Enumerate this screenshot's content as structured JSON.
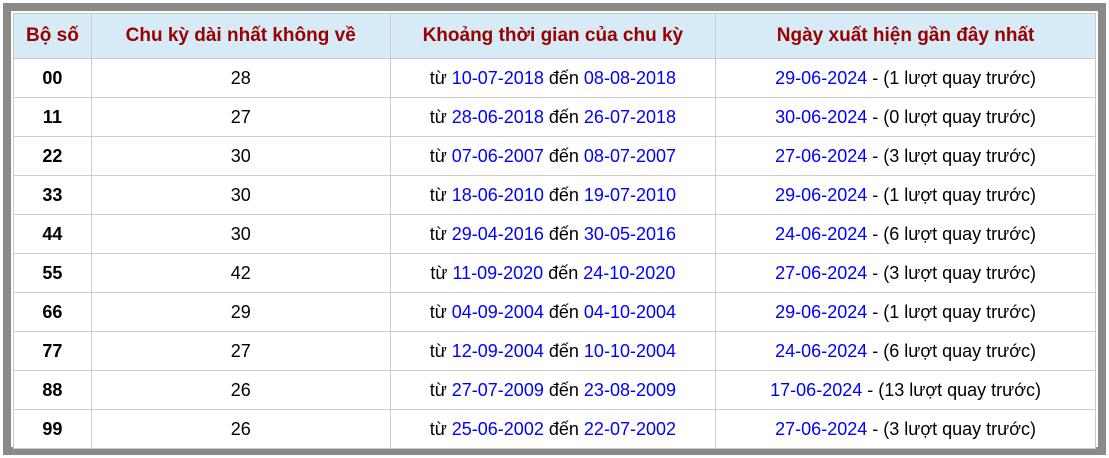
{
  "colors": {
    "header_bg": "#d6ebf5",
    "header_text": "#990000",
    "link": "#0000ff",
    "outer_border": "#8a8a8a",
    "cell_border": "#cccccc"
  },
  "table": {
    "columns": [
      "Bộ số",
      "Chu kỳ dài nhất không về",
      "Khoảng thời gian của chu kỳ",
      "Ngày xuất hiện gần đây nhất"
    ],
    "labels": {
      "from": "từ",
      "to": "đến",
      "separator": "-"
    },
    "rows": [
      {
        "pair": "00",
        "cycle": "28",
        "from_date": "10-07-2018",
        "to_date": "08-08-2018",
        "last_date": "29-06-2024",
        "last_note": "(1 lượt quay trước)"
      },
      {
        "pair": "11",
        "cycle": "27",
        "from_date": "28-06-2018",
        "to_date": "26-07-2018",
        "last_date": "30-06-2024",
        "last_note": "(0 lượt quay trước)"
      },
      {
        "pair": "22",
        "cycle": "30",
        "from_date": "07-06-2007",
        "to_date": "08-07-2007",
        "last_date": "27-06-2024",
        "last_note": "(3 lượt quay trước)"
      },
      {
        "pair": "33",
        "cycle": "30",
        "from_date": "18-06-2010",
        "to_date": "19-07-2010",
        "last_date": "29-06-2024",
        "last_note": "(1 lượt quay trước)"
      },
      {
        "pair": "44",
        "cycle": "30",
        "from_date": "29-04-2016",
        "to_date": "30-05-2016",
        "last_date": "24-06-2024",
        "last_note": "(6 lượt quay trước)"
      },
      {
        "pair": "55",
        "cycle": "42",
        "from_date": "11-09-2020",
        "to_date": "24-10-2020",
        "last_date": "27-06-2024",
        "last_note": "(3 lượt quay trước)"
      },
      {
        "pair": "66",
        "cycle": "29",
        "from_date": "04-09-2004",
        "to_date": "04-10-2004",
        "last_date": "29-06-2024",
        "last_note": "(1 lượt quay trước)"
      },
      {
        "pair": "77",
        "cycle": "27",
        "from_date": "12-09-2004",
        "to_date": "10-10-2004",
        "last_date": "24-06-2024",
        "last_note": "(6 lượt quay trước)"
      },
      {
        "pair": "88",
        "cycle": "26",
        "from_date": "27-07-2009",
        "to_date": "23-08-2009",
        "last_date": "17-06-2024",
        "last_note": "(13 lượt quay trước)"
      },
      {
        "pair": "99",
        "cycle": "26",
        "from_date": "25-06-2002",
        "to_date": "22-07-2002",
        "last_date": "27-06-2024",
        "last_note": "(3 lượt quay trước)"
      }
    ]
  }
}
